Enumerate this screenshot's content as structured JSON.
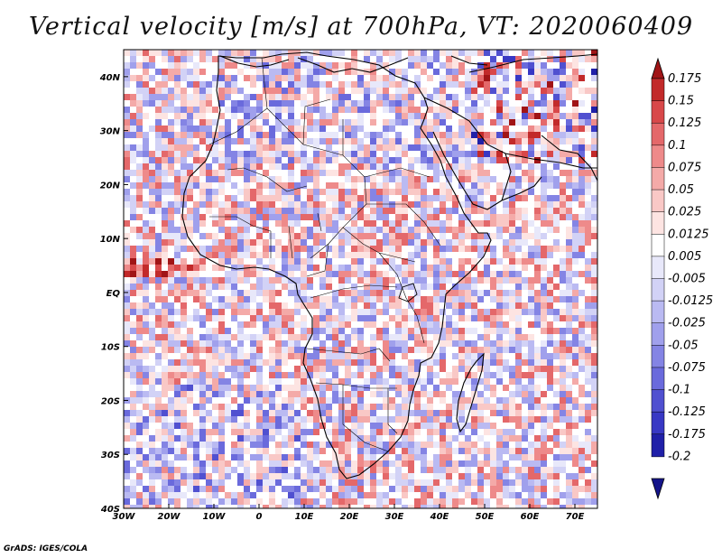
{
  "title": "Vertical velocity [m/s] at 700hPa, VT: 2020060409",
  "credit": "GrADS: IGES/COLA",
  "chart_data": {
    "type": "heatmap",
    "variable": "Vertical velocity",
    "units": "m/s",
    "level": "700hPa",
    "valid_time": "2020060409",
    "lon_range": [
      -30,
      75
    ],
    "lat_range": [
      -40,
      45
    ],
    "x_ticks": [
      {
        "value": -30,
        "label": "30W"
      },
      {
        "value": -20,
        "label": "20W"
      },
      {
        "value": -10,
        "label": "10W"
      },
      {
        "value": 0,
        "label": "0"
      },
      {
        "value": 10,
        "label": "10E"
      },
      {
        "value": 20,
        "label": "20E"
      },
      {
        "value": 30,
        "label": "30E"
      },
      {
        "value": 40,
        "label": "40E"
      },
      {
        "value": 50,
        "label": "50E"
      },
      {
        "value": 60,
        "label": "60E"
      },
      {
        "value": 70,
        "label": "70E"
      }
    ],
    "y_ticks": [
      {
        "value": 40,
        "label": "40N"
      },
      {
        "value": 30,
        "label": "30N"
      },
      {
        "value": 20,
        "label": "20N"
      },
      {
        "value": 10,
        "label": "10N"
      },
      {
        "value": 0,
        "label": "EQ"
      },
      {
        "value": -10,
        "label": "10S"
      },
      {
        "value": -20,
        "label": "20S"
      },
      {
        "value": -30,
        "label": "30S"
      },
      {
        "value": -40,
        "label": "40S"
      }
    ],
    "colorbar": {
      "levels": [
        0.175,
        0.15,
        0.125,
        0.1,
        0.075,
        0.05,
        0.025,
        0.0125,
        0.005,
        -0.005,
        -0.0125,
        -0.025,
        -0.05,
        -0.075,
        -0.1,
        -0.125,
        -0.175,
        -0.2
      ],
      "labels": [
        "0.175",
        "0.15",
        "0.125",
        "0.1",
        "0.075",
        "0.05",
        "0.025",
        "0.0125",
        "0.005",
        "-0.005",
        "-0.0125",
        "-0.025",
        "-0.05",
        "-0.075",
        "-0.1",
        "-0.125",
        "-0.175",
        "-0.2"
      ],
      "colors": [
        "#a01416",
        "#c22a2a",
        "#d8484a",
        "#e4686a",
        "#ee8a8a",
        "#f4aaa8",
        "#f9c8c6",
        "#fde4e2",
        "#ffffff",
        "#e8e8fa",
        "#d2d2f6",
        "#babaf2",
        "#a0a0ec",
        "#8484e4",
        "#6a6adc",
        "#5050d0",
        "#3838c4",
        "#2020a8",
        "#14148a"
      ]
    }
  }
}
